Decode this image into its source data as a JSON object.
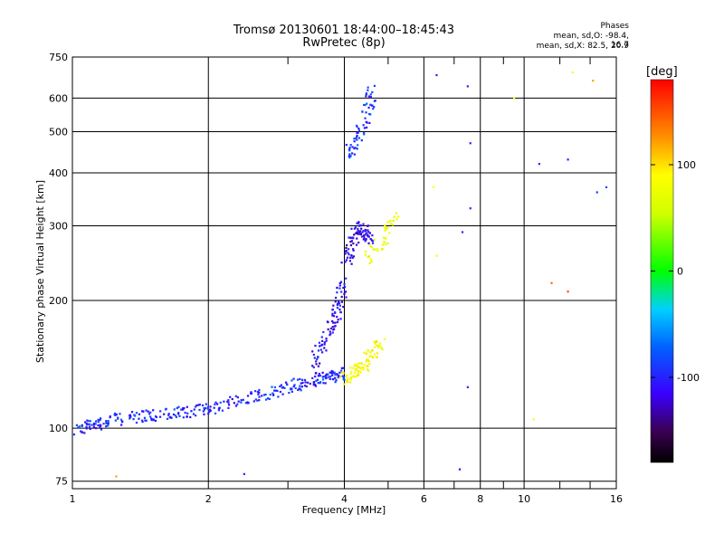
{
  "title_line1": "Tromsø 20130601 18:44:00–18:45:43",
  "title_line2": "RwPretec (8p)",
  "phases": {
    "heading": "Phases",
    "line_o": "mean, sd,O: -98.4, 16.7",
    "line_x": "mean, sd,X:  82.5, 20.9"
  },
  "colorbar": {
    "unit": "[deg]",
    "ticks": [
      100,
      0,
      -100
    ],
    "range": [
      -180,
      180
    ]
  },
  "chart_data": {
    "type": "scatter",
    "xlabel": "Frequency [MHz]",
    "ylabel": "Stationary phase Virtual Height [km]",
    "xscale": "log",
    "yscale": "log",
    "xlim": [
      1,
      16
    ],
    "ylim": [
      72,
      750
    ],
    "x_ticks": [
      1,
      2,
      4,
      6,
      8,
      10,
      16
    ],
    "y_ticks": [
      75,
      100,
      200,
      300,
      400,
      500,
      600,
      750
    ],
    "grid": true,
    "color_by": "phase [deg]",
    "traces": [
      {
        "x": [
          1.02,
          1.1,
          1.2,
          1.35,
          1.5,
          1.7,
          1.9,
          2.1,
          2.4,
          2.7,
          3.0,
          3.3,
          3.6,
          3.8,
          3.95
        ],
        "y": [
          99,
          102,
          104,
          106,
          107,
          108,
          110,
          113,
          117,
          121,
          124,
          128,
          131,
          133,
          135
        ],
        "phase": -100
      },
      {
        "x": [
          3.4,
          3.6,
          3.8,
          3.9,
          4.0
        ],
        "y": [
          140,
          160,
          180,
          200,
          220
        ],
        "phase": -110
      },
      {
        "x": [
          4.05,
          4.15,
          4.3,
          4.45,
          4.55
        ],
        "y": [
          245,
          270,
          300,
          290,
          280
        ],
        "phase": -115
      },
      {
        "x": [
          4.1,
          4.3,
          4.5,
          4.6
        ],
        "y": [
          440,
          480,
          560,
          640
        ],
        "phase": -95
      },
      {
        "x": [
          4.0,
          4.2,
          4.4,
          4.6,
          4.8
        ],
        "y": [
          130,
          135,
          140,
          150,
          160
        ],
        "phase": 85
      },
      {
        "x": [
          4.5,
          4.9,
          5.2
        ],
        "y": [
          250,
          280,
          320
        ],
        "phase": 80
      }
    ],
    "isolated_points": [
      {
        "x": 6.4,
        "y": 680,
        "phase": -100
      },
      {
        "x": 7.5,
        "y": 640,
        "phase": -100
      },
      {
        "x": 7.6,
        "y": 470,
        "phase": -100
      },
      {
        "x": 7.6,
        "y": 330,
        "phase": -100
      },
      {
        "x": 7.3,
        "y": 290,
        "phase": -100
      },
      {
        "x": 10.8,
        "y": 420,
        "phase": -100
      },
      {
        "x": 12.5,
        "y": 430,
        "phase": -100
      },
      {
        "x": 14.5,
        "y": 360,
        "phase": -90
      },
      {
        "x": 15.2,
        "y": 370,
        "phase": -90
      },
      {
        "x": 12.8,
        "y": 690,
        "phase": 80
      },
      {
        "x": 14.2,
        "y": 660,
        "phase": 120
      },
      {
        "x": 9.5,
        "y": 600,
        "phase": 90
      },
      {
        "x": 11.5,
        "y": 220,
        "phase": 140
      },
      {
        "x": 12.5,
        "y": 210,
        "phase": 150
      },
      {
        "x": 7.2,
        "y": 80,
        "phase": -110
      },
      {
        "x": 1.25,
        "y": 77,
        "phase": 120
      },
      {
        "x": 2.4,
        "y": 78,
        "phase": -100
      },
      {
        "x": 10.5,
        "y": 105,
        "phase": 90
      },
      {
        "x": 6.3,
        "y": 370,
        "phase": 90
      },
      {
        "x": 6.4,
        "y": 255,
        "phase": 80
      },
      {
        "x": 7.5,
        "y": 125,
        "phase": -100
      }
    ]
  }
}
